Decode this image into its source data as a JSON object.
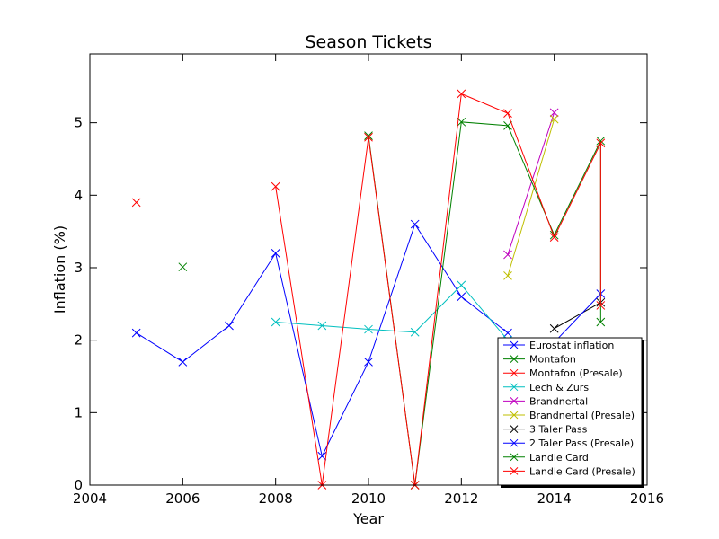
{
  "chart_data": {
    "type": "line",
    "title": "Season Tickets",
    "xlabel": "Year",
    "ylabel": "Inflation (%)",
    "xlim": [
      2004,
      2016
    ],
    "ylim": [
      0,
      5.95
    ],
    "xticks": [
      2004,
      2006,
      2008,
      2010,
      2012,
      2014,
      2016
    ],
    "yticks": [
      0,
      1,
      2,
      3,
      4,
      5
    ],
    "grid": false,
    "legend_position": "lower-right",
    "marker": "x",
    "series": [
      {
        "name": "Eurostat inflation",
        "color": "#0000ff",
        "points": [
          [
            2005,
            2.1
          ],
          [
            2006,
            1.7
          ],
          [
            2007,
            2.2
          ],
          [
            2008,
            3.2
          ],
          [
            2009,
            0.4
          ],
          [
            2010,
            1.7
          ],
          [
            2011,
            3.6
          ],
          [
            2012,
            2.6
          ],
          [
            2013,
            2.1
          ]
        ]
      },
      {
        "name": "Montafon",
        "color": "#008000",
        "points": [
          [
            2006,
            3.01
          ]
        ]
      },
      {
        "name": "Montafon (Presale)",
        "color": "#ff0000",
        "points": [
          [
            2005,
            3.9
          ]
        ]
      },
      {
        "name": "Lech & Zurs",
        "color": "#00bfbf",
        "points": [
          [
            2008,
            2.25
          ],
          [
            2009,
            2.2
          ],
          [
            2010,
            2.15
          ],
          [
            2011,
            2.11
          ],
          [
            2012,
            2.76
          ],
          [
            2013,
            2.0
          ]
        ]
      },
      {
        "name": "Brandnertal",
        "color": "#bf00bf",
        "points": [
          [
            2013,
            3.18
          ],
          [
            2014,
            5.14
          ]
        ]
      },
      {
        "name": "Brandnertal (Presale)",
        "color": "#bfbf00",
        "points": [
          [
            2013,
            2.89
          ],
          [
            2014,
            5.05
          ]
        ]
      },
      {
        "name": "3 Taler Pass",
        "color": "#000000",
        "points": [
          [
            2014,
            2.16
          ],
          [
            2015,
            2.52
          ]
        ]
      },
      {
        "name": "2 Taler Pass (Presale)",
        "color": "#0000ff",
        "points": [
          [
            2014,
            1.97
          ],
          [
            2015,
            2.64
          ]
        ]
      },
      {
        "name": "Landle Card",
        "color": "#008000",
        "points": [
          [
            2010,
            4.82
          ],
          [
            2011,
            0.0
          ],
          [
            2012,
            5.01
          ],
          [
            2013,
            4.96
          ],
          [
            2014,
            3.45
          ],
          [
            2015,
            4.75
          ],
          [
            2015,
            2.25
          ]
        ]
      },
      {
        "name": "Landle Card (Presale)",
        "color": "#ff0000",
        "points": [
          [
            2008,
            4.12
          ],
          [
            2009,
            0.0
          ],
          [
            2010,
            4.8
          ],
          [
            2011,
            0.0
          ],
          [
            2012,
            5.4
          ],
          [
            2013,
            5.13
          ],
          [
            2014,
            3.42
          ],
          [
            2015,
            4.72
          ],
          [
            2015,
            2.48
          ]
        ]
      }
    ]
  }
}
